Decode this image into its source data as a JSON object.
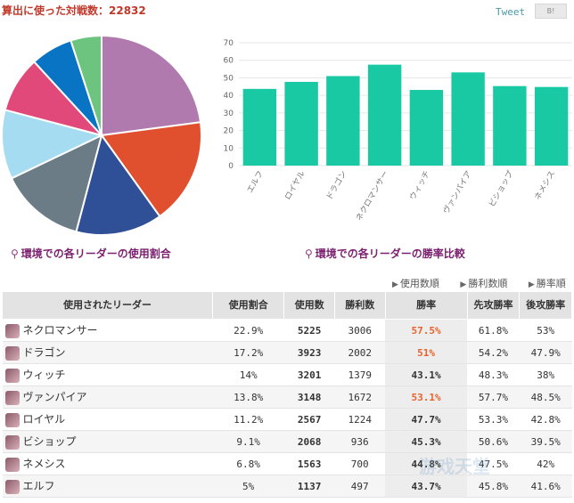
{
  "header": {
    "title": "算出に使った対戦数：22832",
    "tweet_label": "Tweet",
    "share_label": "B!"
  },
  "pie_caption": "環境での各リーダーの使用割合",
  "bar_caption": "環境での各リーダーの勝率比較",
  "sort_links": [
    "使用数順",
    "勝利数順",
    "勝率順"
  ],
  "table": {
    "headers": [
      "使用されたリーダー",
      "使用割合",
      "使用数",
      "勝利数",
      "勝率",
      "先攻勝率",
      "後攻勝率"
    ],
    "rows": [
      {
        "name": "ネクロマンサー",
        "share": "22.9%",
        "uses": "5225",
        "wins": "3006",
        "winrate": "57.5%",
        "first": "61.8%",
        "second": "53%",
        "winrate_color": "#e8622a"
      },
      {
        "name": "ドラゴン",
        "share": "17.2%",
        "uses": "3923",
        "wins": "2002",
        "winrate": "51%",
        "first": "54.2%",
        "second": "47.9%",
        "winrate_color": "#e8622a"
      },
      {
        "name": "ウィッチ",
        "share": "14%",
        "uses": "3201",
        "wins": "1379",
        "winrate": "43.1%",
        "first": "48.3%",
        "second": "38%",
        "winrate_color": "#333333"
      },
      {
        "name": "ヴァンパイア",
        "share": "13.8%",
        "uses": "3148",
        "wins": "1672",
        "winrate": "53.1%",
        "first": "57.7%",
        "second": "48.5%",
        "winrate_color": "#e8622a"
      },
      {
        "name": "ロイヤル",
        "share": "11.2%",
        "uses": "2567",
        "wins": "1224",
        "winrate": "47.7%",
        "first": "53.3%",
        "second": "42.8%",
        "winrate_color": "#333333"
      },
      {
        "name": "ビショップ",
        "share": "9.1%",
        "uses": "2068",
        "wins": "936",
        "winrate": "45.3%",
        "first": "50.6%",
        "second": "39.5%",
        "winrate_color": "#333333"
      },
      {
        "name": "ネメシス",
        "share": "6.8%",
        "uses": "1563",
        "wins": "700",
        "winrate": "44.8%",
        "first": "47.5%",
        "second": "42%",
        "winrate_color": "#333333"
      },
      {
        "name": "エルフ",
        "share": "5%",
        "uses": "1137",
        "wins": "497",
        "winrate": "43.7%",
        "first": "45.8%",
        "second": "41.6%",
        "winrate_color": "#333333"
      }
    ]
  },
  "watermark": "游戏天堂",
  "chart_data": [
    {
      "type": "pie",
      "labels": [
        "ネクロマンサー",
        "ドラゴン",
        "ウィッチ",
        "ヴァンパイア",
        "ロイヤル",
        "ビショップ",
        "ネメシス",
        "エルフ"
      ],
      "values": [
        22.9,
        17.2,
        14,
        13.8,
        11.2,
        9.1,
        6.8,
        5
      ],
      "colors": [
        "#b07aae",
        "#e0502f",
        "#2f4f96",
        "#6b7c87",
        "#a6dcf2",
        "#e0497a",
        "#0a74c4",
        "#6cc47f"
      ]
    },
    {
      "type": "bar",
      "categories": [
        "エルフ",
        "ロイヤル",
        "ドラゴン",
        "ネクロマンサー",
        "ウィッチ",
        "ヴァンパイア",
        "ビショップ",
        "ネメシス"
      ],
      "values": [
        43.7,
        47.7,
        51,
        57.5,
        43.1,
        53.1,
        45.3,
        44.8
      ],
      "ylim": [
        0,
        70
      ],
      "yticks": [
        0,
        10,
        20,
        30,
        40,
        50,
        60,
        70
      ],
      "grid": true,
      "color": "#19c9a3"
    }
  ]
}
